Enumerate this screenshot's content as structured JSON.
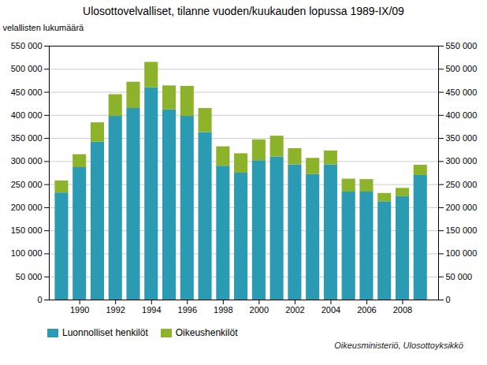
{
  "chart_data": {
    "type": "bar",
    "stacked": true,
    "title": "Ulosottovelvalliset, tilanne vuoden/kuukauden lopussa 1989-IX/09",
    "ylabel": "velallisten lukumäärä",
    "annotations": [
      "Oikeusministeriö, Ulosottoyksikkö"
    ],
    "x": [
      1989,
      1990,
      1991,
      1992,
      1993,
      1994,
      1995,
      1996,
      1997,
      1998,
      1999,
      2000,
      2001,
      2002,
      2003,
      2004,
      2005,
      2006,
      2007,
      2008,
      2009
    ],
    "series": [
      {
        "name": "Luonnolliset henkilöt",
        "color": "#2b9ab3",
        "values": [
          232000,
          287000,
          342000,
          398000,
          415000,
          460000,
          412000,
          398000,
          363000,
          290000,
          275000,
          302000,
          310000,
          293000,
          272000,
          293000,
          234000,
          234000,
          213000,
          224000,
          270000
        ]
      },
      {
        "name": "Oikeushenkilöt",
        "color": "#8db32a",
        "values": [
          26000,
          28000,
          42000,
          47000,
          57000,
          55000,
          52000,
          65000,
          52000,
          42000,
          42000,
          45000,
          45000,
          35000,
          35000,
          30000,
          28000,
          27000,
          18000,
          18000,
          22000
        ]
      }
    ],
    "xlim": [
      1988.3,
      2010.0
    ],
    "xticks": [
      1990,
      1992,
      1994,
      1996,
      1998,
      2000,
      2002,
      2004,
      2006,
      2008
    ],
    "ylim": [
      0,
      550000
    ],
    "yticks": [
      0,
      {
        "value": 50000,
        "label": "50 000"
      },
      {
        "value": 100000,
        "label": "100 000"
      },
      {
        "value": 150000,
        "label": "150 000"
      },
      {
        "value": 200000,
        "label": "200 000"
      },
      {
        "value": 250000,
        "label": "250 000"
      },
      {
        "value": 300000,
        "label": "300 000"
      },
      {
        "value": 350000,
        "label": "350 000"
      },
      {
        "value": 400000,
        "label": "400 000"
      },
      {
        "value": 450000,
        "label": "450 000"
      },
      {
        "value": 500000,
        "label": "500 000"
      },
      {
        "value": 550000,
        "label": "550 000"
      }
    ],
    "y2lim": [
      0,
      550000
    ],
    "y2ticks": [
      0,
      {
        "value": 50000,
        "label": "50 000"
      },
      {
        "value": 100000,
        "label": "100 000"
      },
      {
        "value": 150000,
        "label": "150 000"
      },
      {
        "value": 200000,
        "label": "200 000"
      },
      {
        "value": 250000,
        "label": "250 000"
      },
      {
        "value": 300000,
        "label": "300 000"
      },
      {
        "value": 350000,
        "label": "350 000"
      },
      {
        "value": 400000,
        "label": "400 000"
      },
      {
        "value": 450000,
        "label": "450 000"
      },
      {
        "value": 500000,
        "label": "500 000"
      },
      {
        "value": 550000,
        "label": "550 000"
      }
    ],
    "grid": true,
    "legend": "lower left"
  }
}
